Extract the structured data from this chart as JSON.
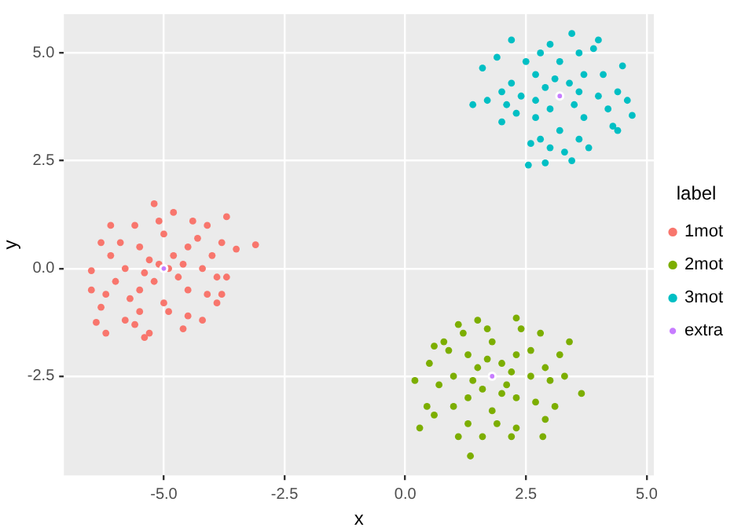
{
  "chart_data": {
    "type": "scatter",
    "xlabel": "x",
    "ylabel": "y",
    "legend_title": "label",
    "xlim": [
      -7.07,
      5.15
    ],
    "ylim": [
      -4.8,
      5.9
    ],
    "xticks": [
      {
        "value": -5,
        "label": "-5.0"
      },
      -2.5,
      {
        "value": 0,
        "label": "0.0"
      },
      2.5,
      {
        "value": 5,
        "label": "5.0"
      }
    ],
    "yticks": [
      -2.5,
      {
        "value": 0,
        "label": "0.0"
      },
      2.5,
      {
        "value": 5,
        "label": "5.0"
      }
    ],
    "grid": true,
    "legend": "right",
    "marker": "circle",
    "series": [
      {
        "name": "1mot",
        "color": "#f8766d",
        "x": [
          -5.5,
          -4.5,
          -5.5,
          -4.5,
          -5,
          -5,
          -5.8,
          -4.2,
          -5.3,
          -4.7,
          -5.2,
          -4.8,
          -5.9,
          -4.1,
          -5.7,
          -4.3,
          -5.1,
          -4.9,
          -6,
          -4,
          -5.6,
          -4.4,
          -5.5,
          -4.5,
          -6.1,
          -3.9,
          -3.8,
          -3.9,
          -6.2,
          -6.1,
          -4.1,
          -4.2,
          -5.8,
          -5.2,
          -5.4,
          -5.3,
          -6.2,
          -6.4,
          -6.5,
          -6.5,
          -6.3,
          -3.7,
          -3.5,
          -3.1,
          -3.8,
          -4.6,
          -4.8,
          -5.6,
          -4.9,
          -5.1,
          -4.6,
          -5.4,
          -3.7,
          -6.3
        ],
        "values": [
          0.5,
          0.5,
          -0.5,
          -0.5,
          0.8,
          -0.8,
          0,
          0,
          0.2,
          -0.2,
          -0.3,
          0.3,
          0.6,
          -0.6,
          -0.7,
          0.7,
          1.1,
          -1,
          -0.3,
          0.3,
          1,
          1.1,
          -1,
          -1.1,
          0.3,
          -0.2,
          0.6,
          -0.8,
          -0.6,
          1,
          1,
          -1.2,
          -1.2,
          1.5,
          -1.6,
          -1.5,
          -1.5,
          -1.25,
          -0.5,
          -0.05,
          0.6,
          1.2,
          0.45,
          0.55,
          -0.6,
          -1.4,
          1.3,
          -1.3,
          0,
          0.1,
          0.1,
          -0.1,
          -0.2,
          -0.9
        ]
      },
      {
        "name": "2mot",
        "color": "#7cae00",
        "x": [
          1.3,
          2.3,
          1.3,
          2.3,
          1.8,
          1.8,
          1,
          2.6,
          1.5,
          2.1,
          1.6,
          2,
          0.9,
          2.7,
          1,
          2.6,
          1.7,
          1.9,
          0.7,
          2.9,
          1.2,
          2.4,
          1.3,
          2.3,
          0.6,
          3,
          3.1,
          0.5,
          0.6,
          2.8,
          1.1,
          2.3,
          1.5,
          0.2,
          0.3,
          0.45,
          1.1,
          1.35,
          2.2,
          2.85,
          3.2,
          3.4,
          3.3,
          3.65,
          2.9,
          0.8,
          1.6,
          2,
          1.4,
          2.2,
          1.7
        ],
        "values": [
          -2,
          -2,
          -3,
          -3,
          -1.7,
          -3.3,
          -2.5,
          -2.5,
          -2.3,
          -2.7,
          -2.8,
          -2.2,
          -1.9,
          -3.1,
          -3.2,
          -1.9,
          -1.4,
          -3.6,
          -2.7,
          -2.3,
          -1.5,
          -1.4,
          -3.6,
          -3.7,
          -1.8,
          -2.6,
          -3.2,
          -2.2,
          -3.4,
          -1.5,
          -1.3,
          -1.15,
          -1.2,
          -2.6,
          -3.7,
          -3.2,
          -3.9,
          -4.35,
          -3.9,
          -3.9,
          -2,
          -1.7,
          -2.5,
          -2.9,
          -3.5,
          -1.7,
          -3.9,
          -2.9,
          -2.6,
          -2.4,
          -2.1
        ]
      },
      {
        "name": "3mot",
        "color": "#00bfc4",
        "x": [
          2.7,
          3.7,
          2.7,
          3.7,
          3.2,
          3.2,
          2.4,
          4,
          2.9,
          3.5,
          3,
          3.4,
          2.2,
          4.2,
          2.3,
          4.1,
          2.8,
          3.6,
          2.8,
          3.6,
          2,
          4.4,
          2.1,
          4.3,
          3,
          3.3,
          2.6,
          3.9,
          2.5,
          4.5,
          4.6,
          4.7,
          4.4,
          1.9,
          1.6,
          1.4,
          1.7,
          2.2,
          3.45,
          3,
          2.55,
          2.9,
          3.45,
          3.8,
          2,
          4,
          3.1,
          3.6,
          2.7
        ],
        "values": [
          4.5,
          4.5,
          3.5,
          3.5,
          4.8,
          3.2,
          4,
          4,
          4.2,
          3.8,
          3.7,
          4.3,
          4.3,
          3.7,
          3.6,
          4.5,
          5,
          5,
          3,
          3,
          4.1,
          4.1,
          3.8,
          3.3,
          2.8,
          2.7,
          2.9,
          5.1,
          4.8,
          4.7,
          3.9,
          3.55,
          3.2,
          4.9,
          4.65,
          3.8,
          3.9,
          5.3,
          5.45,
          5.2,
          2.4,
          2.45,
          2.5,
          2.8,
          3.4,
          5.3,
          4.4,
          4.1,
          3.9
        ]
      },
      {
        "name": "extra",
        "color": "#c77cff",
        "x": [
          -5,
          1.8,
          3.2
        ],
        "values": [
          0,
          -2.5,
          4
        ]
      }
    ]
  }
}
